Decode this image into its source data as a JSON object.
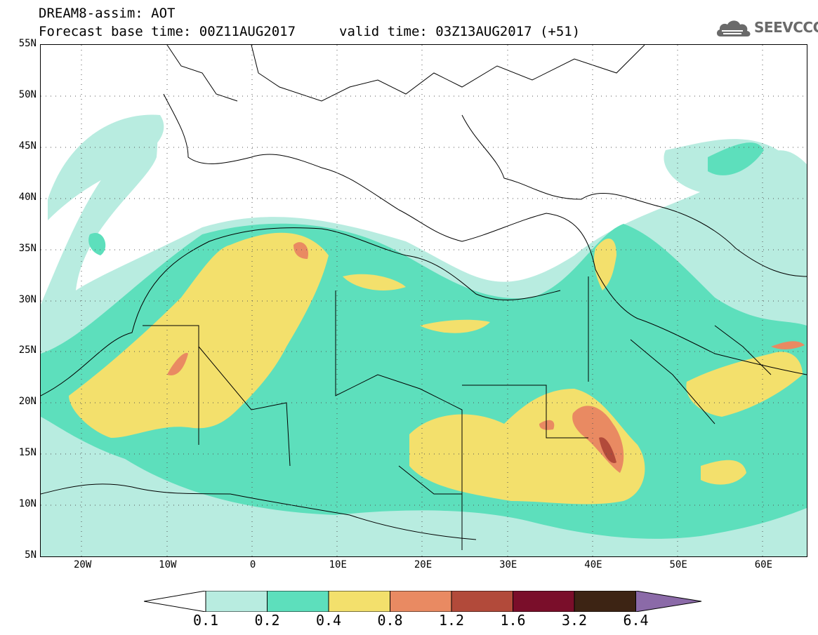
{
  "title": {
    "line1": "DREAM8-assim: AOT",
    "line2_base": "Forecast base time: 00Z11AUG2017",
    "line2_valid": "valid time: 03Z13AUG2017 (+51)"
  },
  "logo": {
    "text": "SEEVCCC",
    "icon": "cloud-icon"
  },
  "map": {
    "projection": "lat-lon",
    "lon_range": [
      -25,
      65
    ],
    "lat_range": [
      5,
      55
    ],
    "lat_labels": [
      "55N",
      "50N",
      "45N",
      "40N",
      "35N",
      "30N",
      "25N",
      "20N",
      "15N",
      "10N",
      "5N"
    ],
    "lon_labels": [
      "20W",
      "10W",
      "0",
      "10E",
      "20E",
      "30E",
      "40E",
      "50E",
      "60E"
    ],
    "lat_values": [
      55,
      50,
      45,
      40,
      35,
      30,
      25,
      20,
      15,
      10,
      5
    ],
    "lon_values": [
      -20,
      -10,
      0,
      10,
      20,
      30,
      40,
      50,
      60
    ],
    "gridlines": "dotted"
  },
  "colorbar": {
    "labels": [
      "0.1",
      "0.2",
      "0.4",
      "0.8",
      "1.2",
      "1.6",
      "3.2",
      "6.4"
    ],
    "colors": [
      "#ffffff",
      "#b8ece0",
      "#5ddfbc",
      "#f3e06c",
      "#e98a62",
      "#b24a3a",
      "#7a0e2a",
      "#3d2414",
      "#8b6aa8"
    ]
  }
}
